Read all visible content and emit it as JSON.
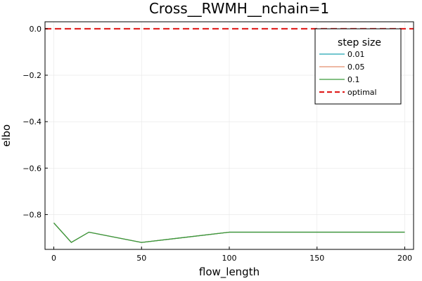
{
  "chart_data": {
    "type": "line",
    "title": "Cross__RWMH__nchain=1",
    "xlabel": "flow_length",
    "ylabel": "elbo",
    "xlim": [
      -5,
      205
    ],
    "ylim": [
      -0.95,
      0.03
    ],
    "xticks": [
      0,
      50,
      100,
      150,
      200
    ],
    "yticks": [
      0.0,
      -0.2,
      -0.4,
      -0.6,
      -0.8
    ],
    "xtick_labels": [
      "0",
      "50",
      "100",
      "150",
      "200"
    ],
    "ytick_labels": [
      "0.0",
      "−0.2",
      "−0.4",
      "−0.6",
      "−0.8"
    ],
    "grid": true,
    "legend_placement": "top-right",
    "legend_title": "step size",
    "x": [
      0,
      10,
      20,
      50,
      100,
      200
    ],
    "series": [
      {
        "name": "0.01",
        "color": "#1fa3b0",
        "style": "solid",
        "values": [
          -0.836,
          -0.92,
          -0.876,
          -0.92,
          -0.876,
          -0.876
        ]
      },
      {
        "name": "0.05",
        "color": "#e48e6c",
        "style": "solid",
        "values": [
          -0.836,
          -0.92,
          -0.876,
          -0.92,
          -0.876,
          -0.876
        ]
      },
      {
        "name": "0.1",
        "color": "#3a9a3a",
        "style": "solid",
        "values": [
          -0.836,
          -0.92,
          -0.876,
          -0.92,
          -0.876,
          -0.876
        ]
      },
      {
        "name": "optimal",
        "color": "#e0201f",
        "style": "dashed",
        "hline": 0.0
      }
    ]
  }
}
